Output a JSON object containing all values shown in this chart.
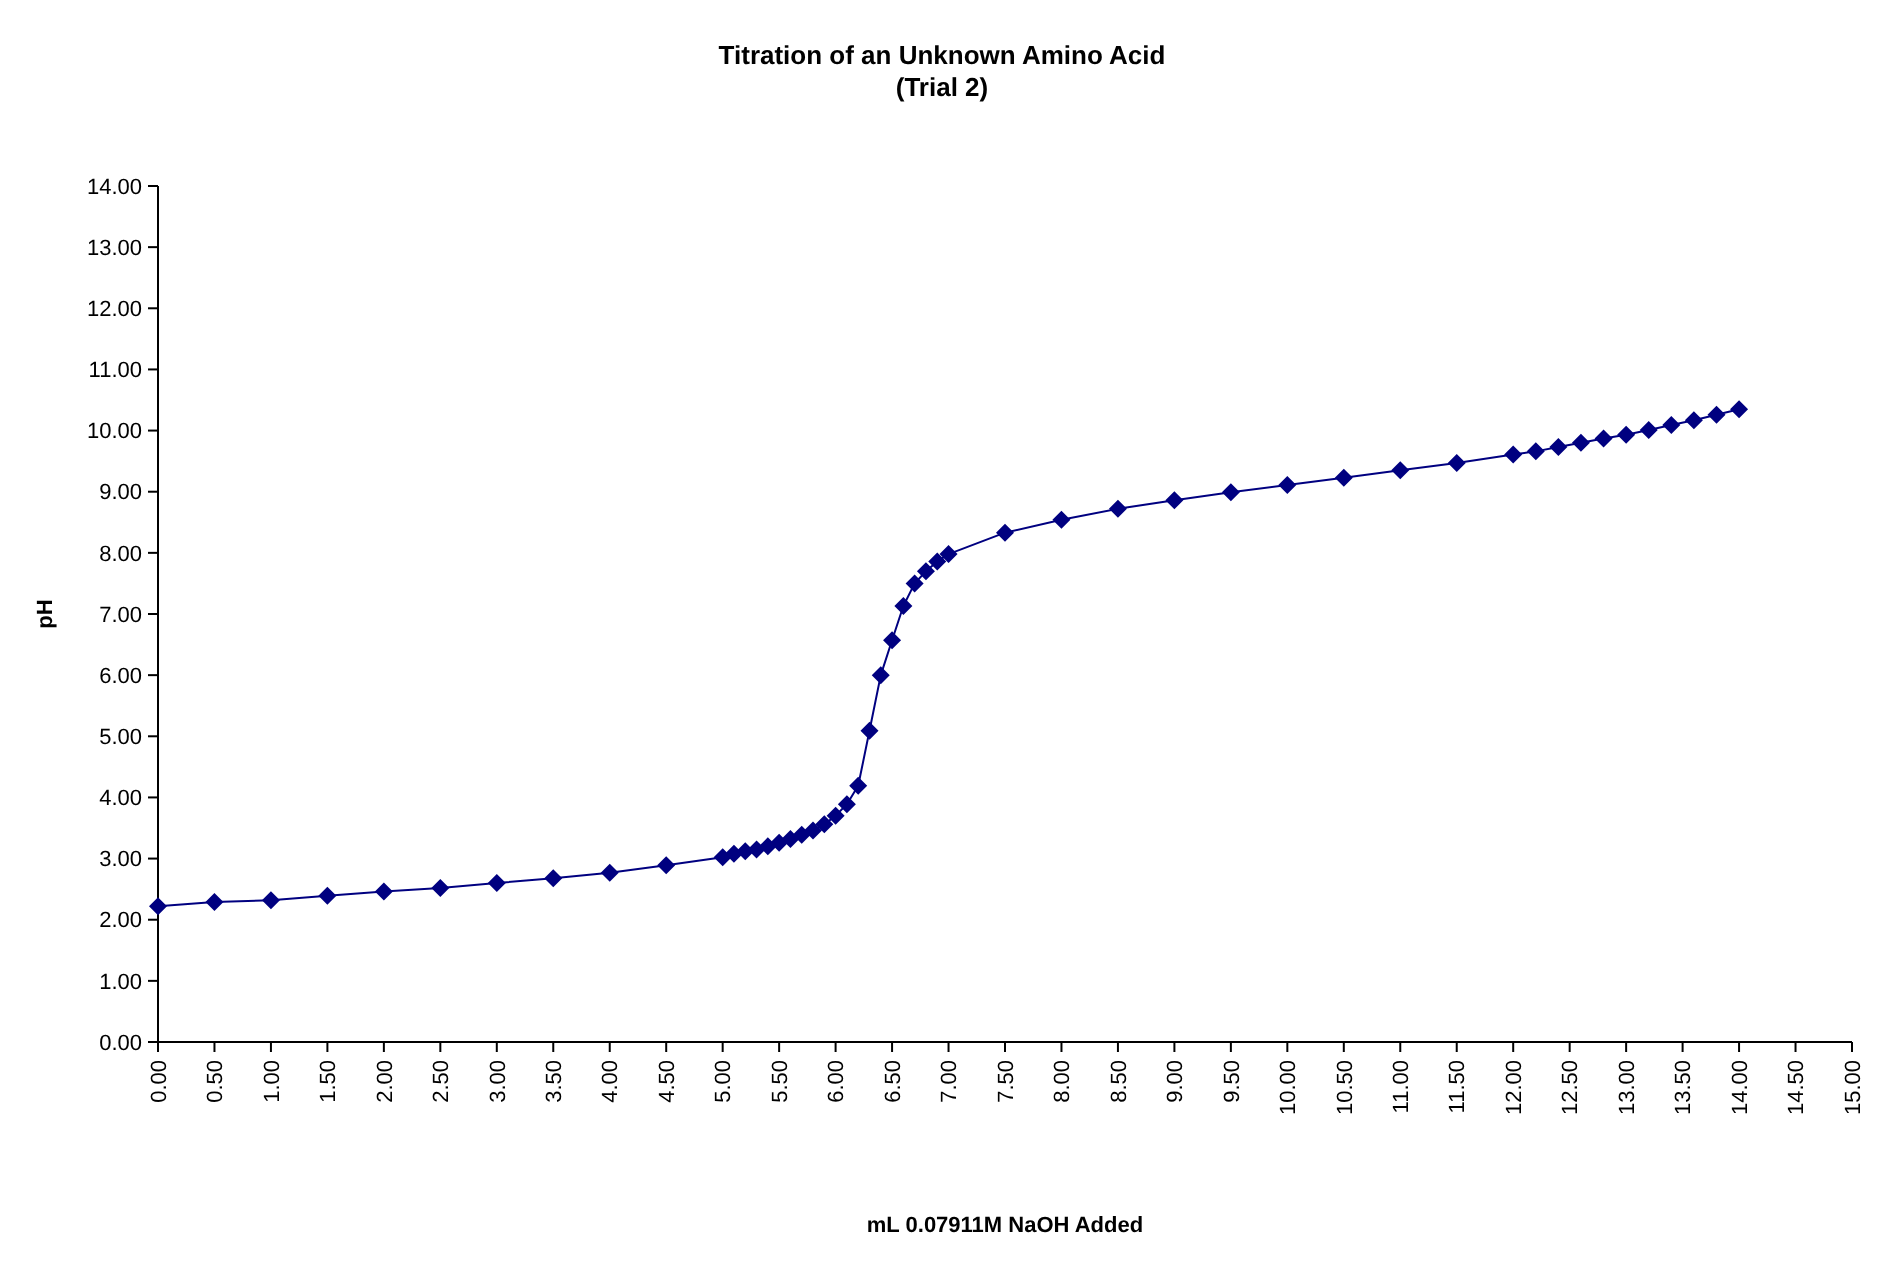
{
  "chart_data": {
    "type": "line",
    "title": "Titration of an Unknown Amino Acid",
    "subtitle": "(Trial 2)",
    "xlabel": "mL 0.07911M NaOH Added",
    "ylabel": "pH",
    "x": [
      0,
      0.5,
      1,
      1.5,
      2,
      2.5,
      3,
      3.5,
      4,
      4.5,
      5,
      5.1,
      5.2,
      5.3,
      5.4,
      5.5,
      5.6,
      5.7,
      5.8,
      5.9,
      6,
      6.1,
      6.2,
      6.3,
      6.4,
      6.5,
      6.6,
      6.7,
      6.8,
      6.9,
      7,
      7.5,
      8,
      8.5,
      9,
      9.5,
      10,
      10.5,
      11,
      11.5,
      12,
      12.2,
      12.4,
      12.6,
      12.8,
      13,
      13.2,
      13.4,
      13.6,
      13.8,
      14
    ],
    "series": [
      {
        "color": "#000080",
        "values": [
          2.22,
          2.29,
          2.32,
          2.39,
          2.46,
          2.52,
          2.6,
          2.68,
          2.77,
          2.89,
          3.02,
          3.08,
          3.12,
          3.15,
          3.2,
          3.26,
          3.32,
          3.39,
          3.46,
          3.56,
          3.7,
          3.89,
          4.19,
          5.09,
          6.0,
          6.57,
          7.13,
          7.5,
          7.7,
          7.86,
          7.98,
          8.33,
          8.54,
          8.72,
          8.86,
          8.99,
          9.11,
          9.23,
          9.35,
          9.47,
          9.61,
          9.66,
          9.73,
          9.8,
          9.87,
          9.93,
          10.01,
          10.09,
          10.17,
          10.26,
          10.35
        ]
      }
    ],
    "xlim": [
      0,
      15
    ],
    "ylim": [
      0,
      14
    ],
    "xticks": [
      {
        "value": 0,
        "label": "0.00"
      },
      {
        "value": 0.5,
        "label": "0.50"
      },
      {
        "value": 1,
        "label": "1.00"
      },
      {
        "value": 1.5,
        "label": "1.50"
      },
      {
        "value": 2,
        "label": "2.00"
      },
      {
        "value": 2.5,
        "label": "2.50"
      },
      {
        "value": 3,
        "label": "3.00"
      },
      {
        "value": 3.5,
        "label": "3.50"
      },
      {
        "value": 4,
        "label": "4.00"
      },
      {
        "value": 4.5,
        "label": "4.50"
      },
      {
        "value": 5,
        "label": "5.00"
      },
      {
        "value": 5.5,
        "label": "5.50"
      },
      {
        "value": 6,
        "label": "6.00"
      },
      {
        "value": 6.5,
        "label": "6.50"
      },
      {
        "value": 7,
        "label": "7.00"
      },
      {
        "value": 7.5,
        "label": "7.50"
      },
      {
        "value": 8,
        "label": "8.00"
      },
      {
        "value": 8.5,
        "label": "8.50"
      },
      {
        "value": 9,
        "label": "9.00"
      },
      {
        "value": 9.5,
        "label": "9.50"
      },
      {
        "value": 10,
        "label": "10.00"
      },
      {
        "value": 10.5,
        "label": "10.50"
      },
      {
        "value": 11,
        "label": "11.00"
      },
      {
        "value": 11.5,
        "label": "11.50"
      },
      {
        "value": 12,
        "label": "12.00"
      },
      {
        "value": 12.5,
        "label": "12.50"
      },
      {
        "value": 13,
        "label": "13.00"
      },
      {
        "value": 13.5,
        "label": "13.50"
      },
      {
        "value": 14,
        "label": "14.00"
      },
      {
        "value": 14.5,
        "label": "14.50"
      },
      {
        "value": 15,
        "label": "15.00"
      }
    ],
    "yticks": [
      {
        "value": 0,
        "label": "0.00"
      },
      {
        "value": 1,
        "label": "1.00"
      },
      {
        "value": 2,
        "label": "2.00"
      },
      {
        "value": 3,
        "label": "3.00"
      },
      {
        "value": 4,
        "label": "4.00"
      },
      {
        "value": 5,
        "label": "5.00"
      },
      {
        "value": 6,
        "label": "6.00"
      },
      {
        "value": 7,
        "label": "7.00"
      },
      {
        "value": 8,
        "label": "8.00"
      },
      {
        "value": 9,
        "label": "9.00"
      },
      {
        "value": 10,
        "label": "10.00"
      },
      {
        "value": 11,
        "label": "11.00"
      },
      {
        "value": 12,
        "label": "12.00"
      },
      {
        "value": 13,
        "label": "13.00"
      },
      {
        "value": 14,
        "label": "14.00"
      }
    ],
    "marker": "diamond",
    "line_style": "solid"
  }
}
